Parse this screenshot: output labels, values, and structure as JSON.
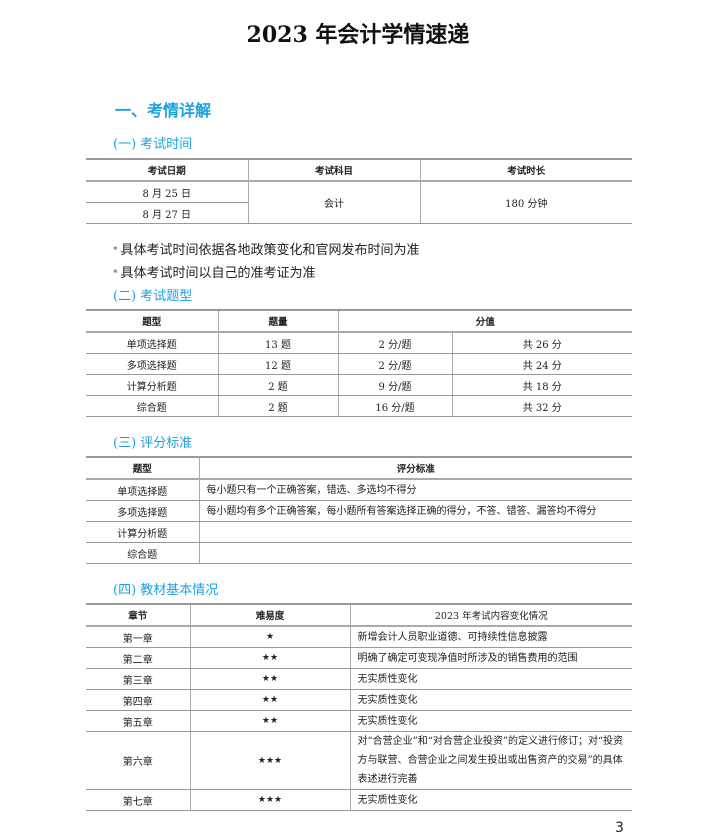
{
  "title": "2023 年会计学情速递",
  "section_heading": "一、考情详解",
  "exam_time": {
    "heading": "(一) 考试时间",
    "headers": [
      "考试日期",
      "考试科目",
      "考试时长"
    ],
    "dates": [
      "8 月 25 日",
      "8 月 27 日"
    ],
    "subject": "会计",
    "duration": "180 分钟"
  },
  "notes": [
    "具体考试时间依据各地政策变化和官网发布时间为准",
    "具体考试时间以自己的准考证为准"
  ],
  "note_bullet": "*",
  "question_types": {
    "heading": "(二) 考试题型",
    "headers": [
      "题型",
      "题量",
      "分值"
    ],
    "rows": [
      [
        "单项选择题",
        "13 题",
        "2 分/题",
        "共 26 分"
      ],
      [
        "多项选择题",
        "12 题",
        "2 分/题",
        "共 24 分"
      ],
      [
        "计算分析题",
        "2 题",
        "9 分/题",
        "共 18 分"
      ],
      [
        "综合题",
        "2 题",
        "16 分/题",
        "共 32 分"
      ]
    ]
  },
  "scoring": {
    "heading": "(三) 评分标准",
    "headers": [
      "题型",
      "评分标准"
    ],
    "rows": [
      [
        "单项选择题",
        "每小题只有一个正确答案，错选、多选均不得分"
      ],
      [
        "多项选择题",
        "每小题均有多个正确答案，每小题所有答案选择正确的得分，不答、错答、漏答均不得分"
      ],
      [
        "计算分析题",
        ""
      ],
      [
        "综合题",
        ""
      ]
    ]
  },
  "textbook": {
    "heading": "(四) 教材基本情况",
    "headers": [
      "章节",
      "难易度",
      "2023 年考试内容变化情况"
    ],
    "rows": [
      [
        "第一章",
        "★",
        "新增会计人员职业道德、可持续性信息披露"
      ],
      [
        "第二章",
        "★★",
        "明确了确定可变现净值时所涉及的销售费用的范围"
      ],
      [
        "第三章",
        "★★",
        "无实质性变化"
      ],
      [
        "第四章",
        "★★",
        "无实质性变化"
      ],
      [
        "第五章",
        "★★",
        "无实质性变化"
      ],
      [
        "第六章",
        "★★★",
        "对“合营企业”和“对合营企业投资”的定义进行修订；对“投资方与联营、合营企业之间发生投出或出售资产的交易”的具体表述进行完善"
      ],
      [
        "第七章",
        "★★★",
        "无实质性变化"
      ]
    ]
  },
  "page_number": "3"
}
